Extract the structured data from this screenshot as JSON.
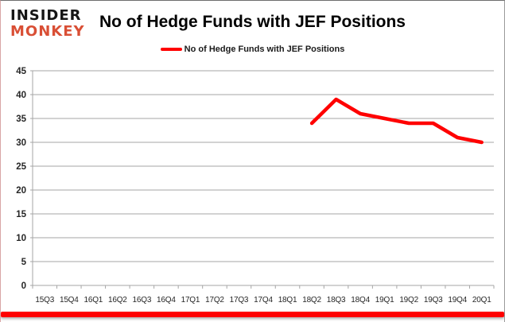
{
  "branding": {
    "line1": "INSIDER",
    "line2": "MONKEY"
  },
  "title": "No of Hedge Funds with JEF Positions",
  "legend": {
    "label": "No of Hedge Funds with JEF Positions"
  },
  "colors": {
    "line": "#ff0000",
    "grid": "#a6a6a6",
    "axis_text": "#262626",
    "title_text": "#000000",
    "logo_top": "#161616",
    "logo_bottom": "#d94f35",
    "bottom_bar": "#fe0000",
    "background": "#ffffff"
  },
  "chart_data": {
    "type": "line",
    "title": "No of Hedge Funds with JEF Positions",
    "categories": [
      "15Q3",
      "15Q4",
      "16Q1",
      "16Q2",
      "16Q3",
      "16Q4",
      "17Q1",
      "17Q2",
      "17Q3",
      "17Q4",
      "18Q1",
      "18Q2",
      "18Q3",
      "18Q4",
      "19Q1",
      "19Q2",
      "19Q3",
      "19Q4",
      "20Q1"
    ],
    "series": [
      {
        "name": "No of Hedge Funds with JEF Positions",
        "color": "#ff0000",
        "values": [
          null,
          null,
          null,
          null,
          null,
          null,
          null,
          null,
          null,
          null,
          null,
          34,
          39,
          36,
          35,
          34,
          34,
          31,
          30
        ]
      }
    ],
    "xlabel": "",
    "ylabel": "",
    "ylim": [
      0,
      45
    ],
    "yticks": [
      0,
      5,
      10,
      15,
      20,
      25,
      30,
      35,
      40,
      45
    ],
    "grid": true,
    "legend_position": "top"
  }
}
